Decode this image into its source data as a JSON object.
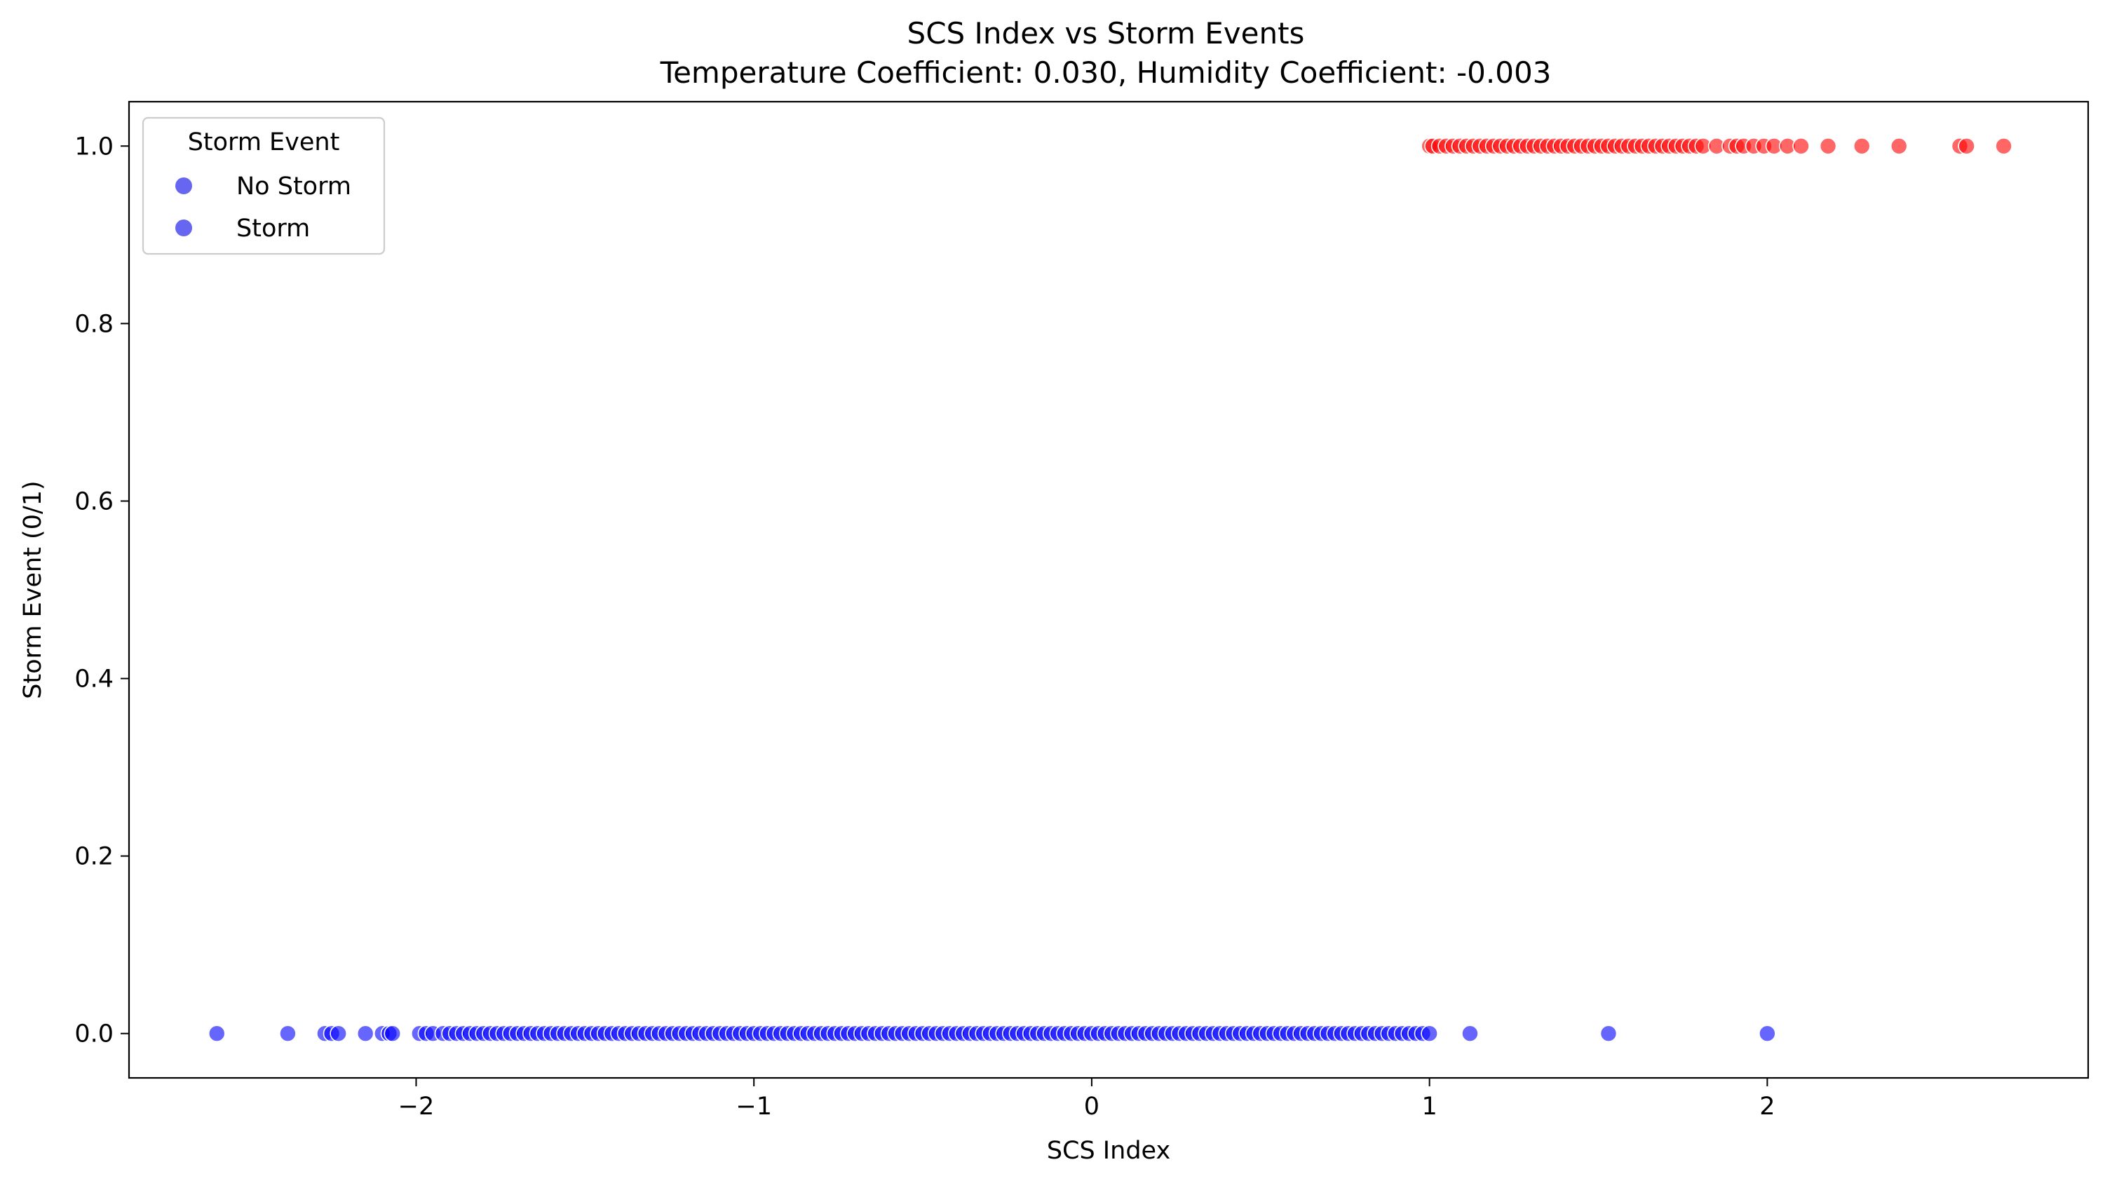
{
  "chart_data": {
    "type": "scatter",
    "title": "SCS Index vs Storm Events",
    "subtitle": "Temperature Coefficient: 0.030, Humidity Coefficient: -0.003",
    "xlabel": "SCS Index",
    "ylabel": "Storm Event (0/1)",
    "xlim": [
      -2.85,
      2.95
    ],
    "ylim": [
      -0.05,
      1.05
    ],
    "x_ticks": [
      -2,
      -1,
      0,
      1,
      2
    ],
    "x_tick_labels": [
      "−2",
      "−1",
      "0",
      "1",
      "2"
    ],
    "y_ticks": [
      0.0,
      0.2,
      0.4,
      0.6,
      0.8,
      1.0
    ],
    "y_tick_labels": [
      "0.0",
      "0.2",
      "0.4",
      "0.6",
      "0.8",
      "1.0"
    ],
    "grid": false,
    "legend": {
      "title": "Storm Event",
      "placement": "top-left",
      "entries": [
        {
          "label": "No Storm",
          "color": "#6666f0"
        },
        {
          "label": "Storm",
          "color": "#6666f0"
        }
      ]
    },
    "series": [
      {
        "name": "No Storm",
        "color": "#0000ff",
        "y": 0,
        "x": [
          -2.59,
          -2.38,
          -2.27,
          -2.25,
          -2.23,
          -2.15,
          -2.1,
          -2.08,
          -2.07,
          -1.99,
          -1.97,
          -1.95,
          -1.92,
          -1.9,
          -1.88,
          -1.86,
          -1.84,
          -1.82,
          -1.8,
          -1.78,
          -1.76,
          -1.74,
          -1.72,
          -1.7,
          -1.68,
          -1.66,
          -1.64,
          -1.62,
          -1.6,
          -1.58,
          -1.56,
          -1.54,
          -1.52,
          -1.5,
          -1.48,
          -1.46,
          -1.44,
          -1.42,
          -1.4,
          -1.38,
          -1.36,
          -1.34,
          -1.32,
          -1.3,
          -1.28,
          -1.26,
          -1.24,
          -1.22,
          -1.2,
          -1.18,
          -1.16,
          -1.14,
          -1.12,
          -1.1,
          -1.08,
          -1.06,
          -1.04,
          -1.02,
          -1.0,
          -0.98,
          -0.96,
          -0.94,
          -0.92,
          -0.9,
          -0.88,
          -0.86,
          -0.84,
          -0.82,
          -0.8,
          -0.78,
          -0.76,
          -0.74,
          -0.72,
          -0.7,
          -0.68,
          -0.66,
          -0.64,
          -0.62,
          -0.6,
          -0.58,
          -0.56,
          -0.54,
          -0.52,
          -0.5,
          -0.48,
          -0.46,
          -0.44,
          -0.42,
          -0.4,
          -0.38,
          -0.36,
          -0.34,
          -0.32,
          -0.3,
          -0.28,
          -0.26,
          -0.24,
          -0.22,
          -0.2,
          -0.18,
          -0.16,
          -0.14,
          -0.12,
          -0.1,
          -0.08,
          -0.06,
          -0.04,
          -0.02,
          0.0,
          0.02,
          0.04,
          0.06,
          0.08,
          0.1,
          0.12,
          0.14,
          0.16,
          0.18,
          0.2,
          0.22,
          0.24,
          0.26,
          0.28,
          0.3,
          0.32,
          0.34,
          0.36,
          0.38,
          0.4,
          0.42,
          0.44,
          0.46,
          0.48,
          0.5,
          0.52,
          0.54,
          0.56,
          0.58,
          0.6,
          0.62,
          0.64,
          0.66,
          0.68,
          0.7,
          0.72,
          0.74,
          0.76,
          0.78,
          0.8,
          0.82,
          0.84,
          0.86,
          0.88,
          0.9,
          0.92,
          0.94,
          0.96,
          0.98,
          1.0,
          1.12,
          1.53,
          2.0
        ]
      },
      {
        "name": "Storm",
        "color": "#ff0000",
        "y": 1,
        "x": [
          1.0,
          1.01,
          1.03,
          1.05,
          1.07,
          1.09,
          1.11,
          1.13,
          1.15,
          1.17,
          1.19,
          1.21,
          1.23,
          1.25,
          1.27,
          1.29,
          1.31,
          1.33,
          1.35,
          1.37,
          1.39,
          1.41,
          1.43,
          1.45,
          1.47,
          1.49,
          1.51,
          1.53,
          1.55,
          1.57,
          1.59,
          1.61,
          1.63,
          1.65,
          1.67,
          1.69,
          1.71,
          1.73,
          1.75,
          1.77,
          1.79,
          1.81,
          1.85,
          1.89,
          1.91,
          1.93,
          1.96,
          1.99,
          2.02,
          2.06,
          2.1,
          2.18,
          2.28,
          2.39,
          2.57,
          2.59,
          2.7
        ]
      }
    ]
  }
}
